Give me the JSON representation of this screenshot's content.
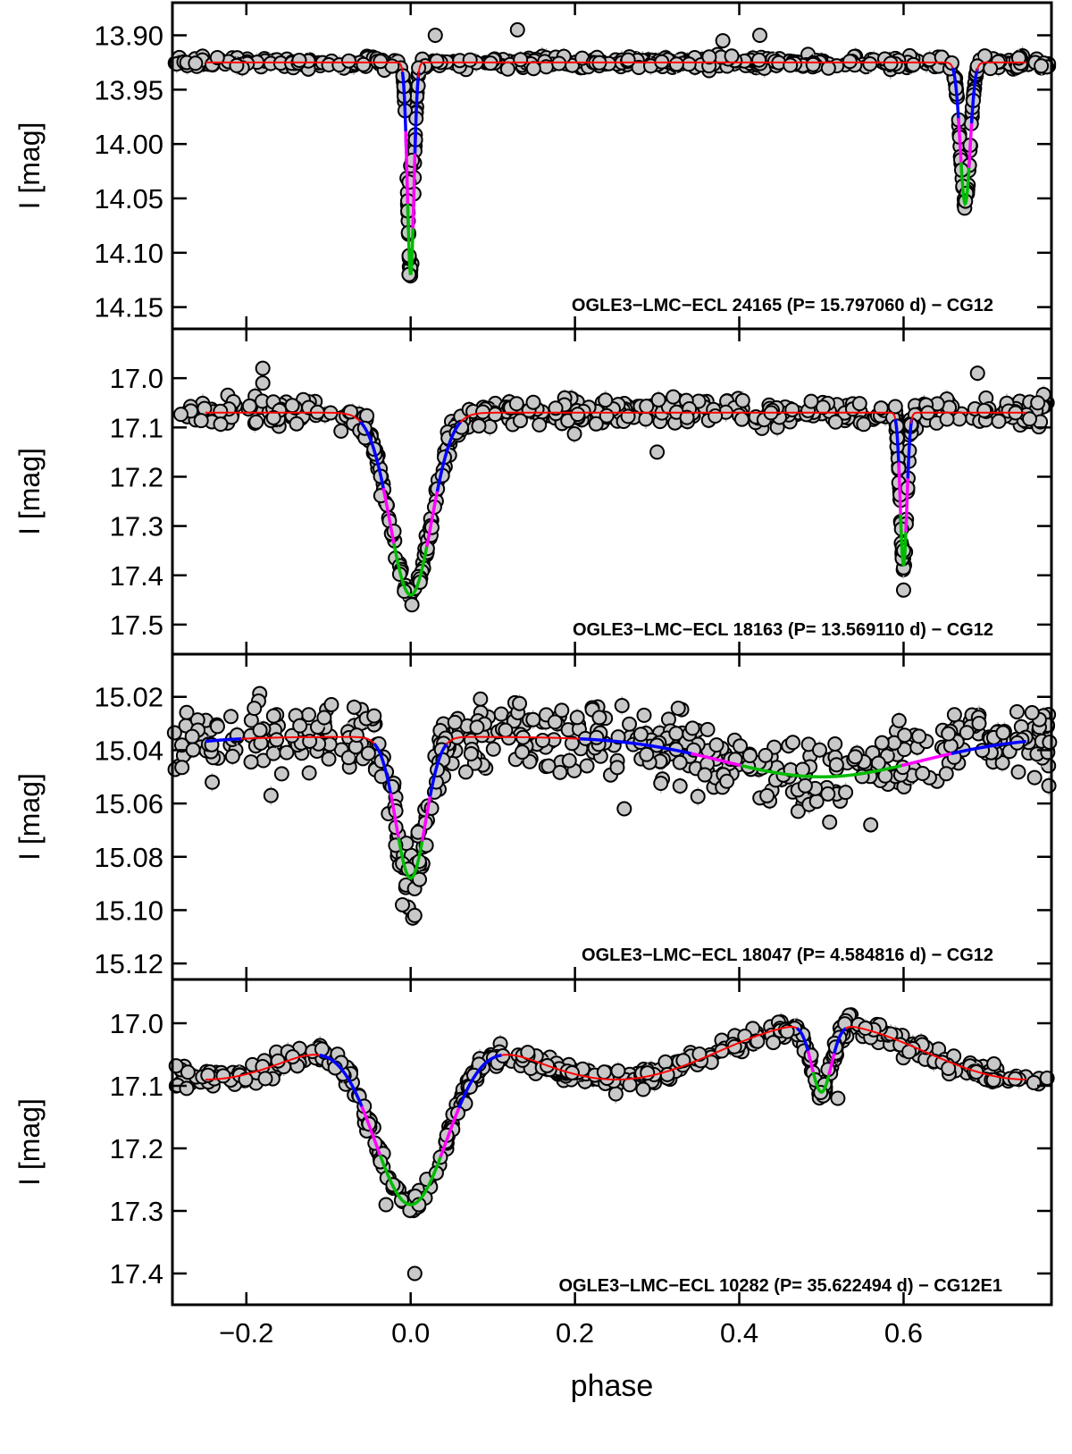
{
  "chart_data": {
    "type": "scatter",
    "shared_x": {
      "xlabel": "phase",
      "xlim": [
        -0.29,
        0.78
      ],
      "xticks": [
        -0.2,
        0.0,
        0.2,
        0.4,
        0.6
      ],
      "xtick_labels": [
        "−0.2",
        "0.0",
        "0.2",
        "0.4",
        "0.6"
      ]
    },
    "colors": {
      "points_edge": "#000000",
      "points_fill": "#c8c8c8",
      "errorbar": "#b4b4b4",
      "model_out": "#ff0000",
      "model_ingress": "#0000ff",
      "model_mid": "#ff00ff",
      "model_core": "#00bb00"
    },
    "panels": [
      {
        "id": "panel-24165",
        "ylabel": "I [mag]",
        "ylim": [
          14.17,
          13.87
        ],
        "yticks": [
          13.9,
          13.95,
          14.0,
          14.05,
          14.1,
          14.15
        ],
        "ytick_labels": [
          "13.90",
          "13.95",
          "14.00",
          "14.05",
          "14.10",
          "14.15"
        ],
        "annotation": "OGLE3−LMC−ECL 24165  (P= 15.797060 d) − CG12",
        "baseline": 13.925,
        "noise": 0.004,
        "eclipses": [
          {
            "phase": 0.0,
            "depth": 0.195,
            "width": 0.004
          },
          {
            "phase": 0.675,
            "depth": 0.13,
            "width": 0.006
          }
        ],
        "extra_points": [
          [
            -0.002,
            14.12
          ],
          [
            0.0,
            14.02
          ],
          [
            -0.002,
            14.035
          ],
          [
            0.002,
            14.015
          ],
          [
            0.03,
            13.9
          ],
          [
            0.13,
            13.895
          ],
          [
            0.38,
            13.905
          ],
          [
            0.425,
            13.9
          ]
        ]
      },
      {
        "id": "panel-18163",
        "ylabel": "I [mag]",
        "ylim": [
          17.56,
          16.9
        ],
        "yticks": [
          17.0,
          17.1,
          17.2,
          17.3,
          17.4,
          17.5
        ],
        "ytick_labels": [
          "17.0",
          "17.1",
          "17.2",
          "17.3",
          "17.4",
          "17.5"
        ],
        "annotation": "OGLE3−LMC−ECL 18163  (P= 13.569110 d) − CG12",
        "baseline": 17.07,
        "noise": 0.02,
        "eclipses": [
          {
            "phase": 0.0,
            "depth": 0.37,
            "width": 0.025
          },
          {
            "phase": 0.6,
            "depth": 0.31,
            "width": 0.004
          }
        ],
        "extra_points": [
          [
            -0.18,
            16.98
          ],
          [
            -0.18,
            17.01
          ],
          [
            0.69,
            16.99
          ],
          [
            0.3,
            17.15
          ],
          [
            0.6,
            17.43
          ],
          [
            0.6,
            17.35
          ]
        ]
      },
      {
        "id": "panel-18047",
        "ylabel": "I [mag]",
        "ylim": [
          15.126,
          15.004
        ],
        "yticks": [
          15.02,
          15.04,
          15.06,
          15.08,
          15.1,
          15.12
        ],
        "ytick_labels": [
          "15.02",
          "15.04",
          "15.06",
          "15.08",
          "15.10",
          "15.12"
        ],
        "annotation": "OGLE3−LMC−ECL 18047  (P= 4.584816 d) − CG12",
        "baseline": 15.035,
        "noise": 0.009,
        "eclipses": [
          {
            "phase": 0.0,
            "depth": 0.053,
            "width": 0.018
          },
          {
            "phase": 0.5,
            "depth": 0.015,
            "width": 0.12
          }
        ],
        "extra_points": [
          [
            0.005,
            15.102
          ],
          [
            -0.01,
            15.098
          ],
          [
            0.26,
            15.062
          ],
          [
            -0.17,
            15.057
          ],
          [
            0.51,
            15.067
          ],
          [
            0.56,
            15.068
          ]
        ]
      },
      {
        "id": "panel-10282",
        "ylabel": "I [mag]",
        "ylim": [
          17.45,
          16.93
        ],
        "yticks": [
          17.0,
          17.1,
          17.2,
          17.3,
          17.4
        ],
        "ytick_labels": [
          "17.0",
          "17.1",
          "17.2",
          "17.3",
          "17.4"
        ],
        "annotation": "OGLE3−LMC−ECL 10282  (P= 35.622494 d) − CG12E1",
        "baseline": 17.0,
        "noise": 0.012,
        "ellipsoidal": 0.09,
        "eclipses": [
          {
            "phase": 0.0,
            "depth": 0.29,
            "width": 0.045
          },
          {
            "phase": 0.5,
            "depth": 0.11,
            "width": 0.012
          }
        ],
        "extra_points": [
          [
            0.52,
            17.12
          ],
          [
            -0.03,
            17.29
          ],
          [
            0.01,
            17.29
          ],
          [
            0.005,
            17.4
          ]
        ]
      }
    ]
  }
}
